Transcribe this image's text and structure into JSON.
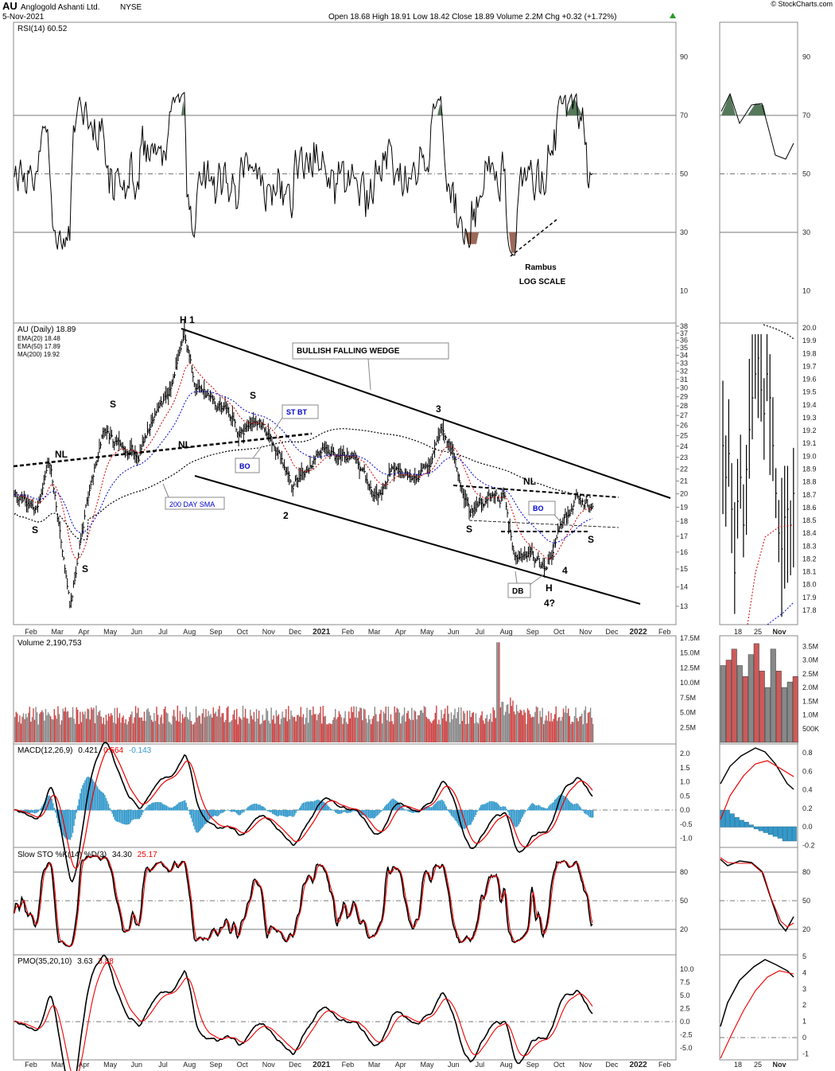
{
  "header": {
    "symbol": "AU",
    "company": "Anglogold Ashanti Ltd.",
    "exchange": "NYSE",
    "date": "5-Nov-2021",
    "quote_line": "Open 18.68  High 18.91  Low 18.42  Close 18.89  Volume 2.2M  Chg +0.32 (+1.72%)",
    "watermark": "© StockCharts.com"
  },
  "colors": {
    "panel_border": "#888888",
    "price": "#000000",
    "ema20": "#cc0000",
    "ema50": "#0000cc",
    "ma200": "#000000",
    "volume_up": "#cc4444",
    "volume_down": "#888888",
    "macd_hist": "#3399cc",
    "signal": "#ee0000",
    "rsi_overbought_fill": "#55775a",
    "rsi_oversold_fill": "#9b6a5a"
  },
  "x_axis": {
    "main_labels": [
      "Feb",
      "Mar",
      "Apr",
      "May",
      "Jun",
      "Jul",
      "Aug",
      "Sep",
      "Oct",
      "Nov",
      "Dec",
      "2021",
      "Feb",
      "Mar",
      "Apr",
      "May",
      "Jun",
      "Jul",
      "Aug",
      "Sep",
      "Oct",
      "Nov",
      "Dec",
      "2022",
      "Feb"
    ],
    "side_labels": [
      "18",
      "25",
      "Nov"
    ]
  },
  "panels": {
    "rsi": {
      "legend": "RSI(14) 60.52",
      "ticks": [
        "90",
        "70",
        "50",
        "30",
        "10"
      ],
      "levels": [
        70,
        50,
        30
      ]
    },
    "price": {
      "legend_title": "AU (Daily) 18.89",
      "legend_ema20": "EMA(20) 18.48",
      "legend_ema50": "EMA(50) 17.89",
      "legend_ma200": "MA(200) 19.92",
      "scale": "log",
      "ticks": [
        "38",
        "37",
        "36",
        "35",
        "34",
        "33",
        "32",
        "31",
        "30",
        "29",
        "28",
        "27",
        "26",
        "25",
        "24",
        "23",
        "22",
        "21",
        "20",
        "19",
        "18",
        "17",
        "16",
        "15",
        "14",
        "13"
      ],
      "side_ticks": [
        "20.0",
        "19.9",
        "19.8",
        "19.7",
        "19.6",
        "19.5",
        "19.4",
        "19.3",
        "19.2",
        "19.1",
        "19.0",
        "18.9",
        "18.8",
        "18.7",
        "18.6",
        "18.5",
        "18.4",
        "18.3",
        "18.2",
        "18.1",
        "18.0",
        "17.9",
        "17.8"
      ]
    },
    "volume": {
      "legend": "Volume 2,190,753",
      "ticks": [
        "17.5M",
        "15.0M",
        "12.5M",
        "10.0M",
        "7.5M",
        "5.0M",
        "2.5M"
      ],
      "side_ticks": [
        "3.5M",
        "3.0M",
        "2.5M",
        "2.0M",
        "1.5M",
        "1.0M",
        "500K"
      ]
    },
    "macd": {
      "legend_name": "MACD(12,26,9)",
      "legend_v1": "0.421",
      "legend_v2": "0.564",
      "legend_v3": "-0.143",
      "ticks": [
        "2.0",
        "1.5",
        "1.0",
        "0.5",
        "0.0",
        "-0.5",
        "-1.0"
      ],
      "side_ticks": [
        "0.8",
        "0.6",
        "0.4",
        "0.2",
        "0.0",
        "-0.2"
      ]
    },
    "sto": {
      "legend_name": "Slow STO %K(14) %D(3)",
      "legend_v1": "34.30",
      "legend_v2": "25.17",
      "ticks": [
        "80",
        "50",
        "20"
      ],
      "levels": [
        80,
        50,
        20
      ]
    },
    "pmo": {
      "legend_name": "PMO(35,20,10)",
      "legend_v1": "3.63",
      "legend_v2": "3.88",
      "ticks": [
        "10.0",
        "7.5",
        "5.0",
        "2.5",
        "0.0",
        "-2.5",
        "-5.0"
      ],
      "side_ticks": [
        "5",
        "4",
        "3",
        "2",
        "1",
        "0",
        "-1"
      ]
    }
  },
  "annotations": {
    "rsi_note1": "Rambus",
    "rsi_note2": "LOG SCALE",
    "wedge": "BULLISH FALLING WEDGE",
    "sma": "200 DAY SMA",
    "stbt": "ST BT",
    "bo1": "BO",
    "bo2": "BO",
    "db": "DB",
    "h1": "H 1",
    "n2": "2",
    "n3": "3",
    "n4": "4",
    "h_bottom": "H",
    "q4": "4?",
    "nl1": "NL",
    "nl2": "NL",
    "nl3": "NL",
    "s1": "S",
    "s2": "S",
    "s3": "S",
    "s4": "S",
    "s5": "S",
    "s6": "S"
  },
  "chart_data": {
    "type": "line",
    "symbol": "AU",
    "y_scale": "log",
    "x_range": [
      "2020-01",
      "2021-11-05"
    ],
    "price_waypoints": {
      "x": [
        "2020-01",
        "2020-02",
        "2020-03",
        "2020-04",
        "2020-05",
        "2020-06",
        "2020-07",
        "2020-08",
        "2020-09",
        "2020-10",
        "2020-11",
        "2020-12",
        "2021-01",
        "2021-02",
        "2021-03",
        "2021-04",
        "2021-05",
        "2021-06",
        "2021-07",
        "2021-08",
        "2021-09",
        "2021-10",
        "2021-11-05"
      ],
      "close": [
        20.5,
        19.5,
        15.0,
        22.0,
        25.5,
        23.5,
        31.0,
        37.0,
        28.0,
        27.0,
        23.0,
        20.5,
        22.0,
        23.5,
        20.0,
        22.0,
        26.0,
        19.5,
        19.5,
        16.0,
        15.5,
        19.0,
        18.89
      ]
    },
    "series": [
      {
        "name": "EMA(20)",
        "last": 18.48
      },
      {
        "name": "EMA(50)",
        "last": 17.89
      },
      {
        "name": "MA(200)",
        "last": 19.92
      }
    ],
    "rsi_last": 60.52,
    "volume_last": 2190753,
    "macd_last": [
      0.421,
      0.564,
      -0.143
    ],
    "sto_last": [
      34.3,
      25.17
    ],
    "pmo_last": [
      3.63,
      3.88
    ]
  }
}
